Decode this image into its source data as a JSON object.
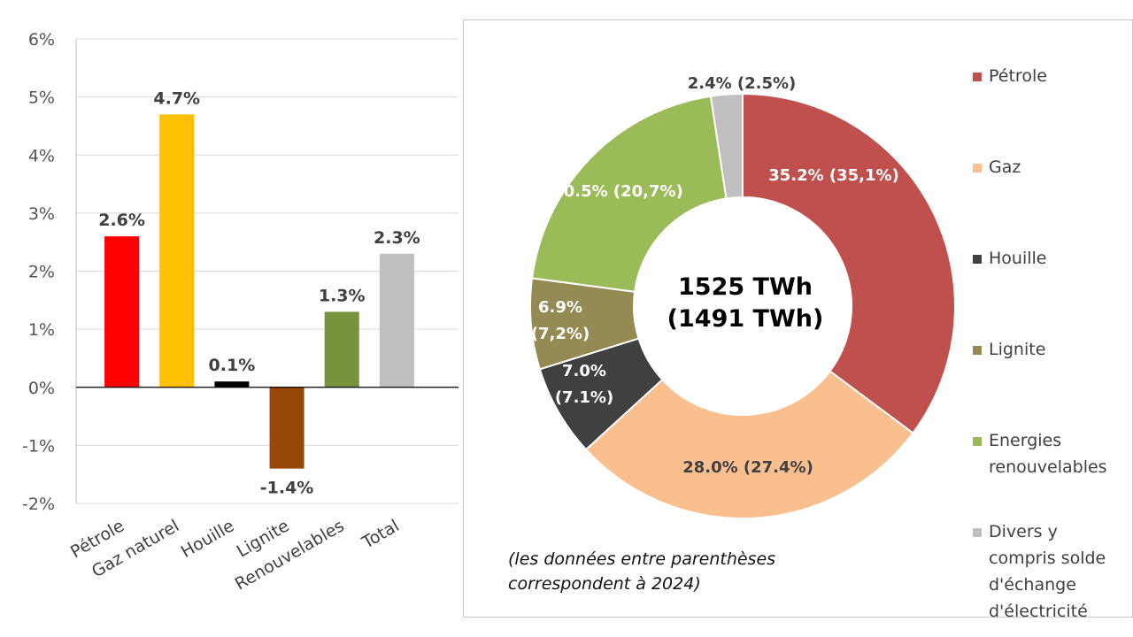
{
  "chart_data": [
    {
      "type": "bar",
      "title": "",
      "xlabel": "",
      "ylabel": "",
      "categories": [
        "Pétrole",
        "Gaz naturel",
        "Houille",
        "Lignite",
        "Renouvelables",
        "Total"
      ],
      "values": [
        2.6,
        4.7,
        0.1,
        -1.4,
        1.3,
        2.3
      ],
      "value_labels": [
        "2.6%",
        "4.7%",
        "0.1%",
        "-1.4%",
        "1.3%",
        "2.3%"
      ],
      "colors": [
        "#ff0000",
        "#ffc000",
        "#000000",
        "#974706",
        "#77933c",
        "#bfbfbf"
      ],
      "ylim": [
        -2,
        6
      ],
      "yticks": [
        6,
        5,
        4,
        3,
        2,
        1,
        0,
        -1,
        -2
      ],
      "ytick_labels": [
        "6%",
        "5%",
        "4%",
        "3%",
        "2%",
        "1%",
        "0%",
        "-1%",
        "-2%"
      ],
      "grid": true,
      "legend": "none"
    },
    {
      "type": "pie",
      "donut": true,
      "center_label": [
        "1525 TWh",
        "(1491 TWh)"
      ],
      "categories": [
        "Pétrole",
        "Gaz",
        "Houille",
        "Lignite",
        "Energies renouvelables",
        "Divers y compris solde d'échange d'électricité"
      ],
      "values": [
        35.2,
        28.0,
        7.0,
        6.9,
        20.5,
        2.4
      ],
      "values_2024": [
        35.1,
        27.4,
        7.1,
        7.2,
        20.7,
        2.5
      ],
      "slice_labels": [
        [
          "35.2% (35,1%)"
        ],
        [
          "28.0% (27.4%)"
        ],
        [
          "7.0%",
          "(7.1%)"
        ],
        [
          "6.9%",
          "(7,2%)"
        ],
        [
          "20.5% (20,7%)"
        ],
        [
          "2.4% (2.5%)"
        ]
      ],
      "slice_label_colors": [
        "#ffffff",
        "#404040",
        "#ffffff",
        "#ffffff",
        "#ffffff",
        "#404040"
      ],
      "colors": [
        "#c0504d",
        "#f9bf8f",
        "#404040",
        "#948a54",
        "#9bbb59",
        "#bfbfbf"
      ],
      "legend": "right",
      "legend_labels": [
        "Pétrole",
        "Gaz",
        "Houille",
        "Lignite",
        "Energies\nrenouvelables",
        "Divers y\ncompris solde\nd'échange\nd'électricité"
      ],
      "note": "(les données entre parenthèses\ncorrespondent à 2024)"
    }
  ]
}
